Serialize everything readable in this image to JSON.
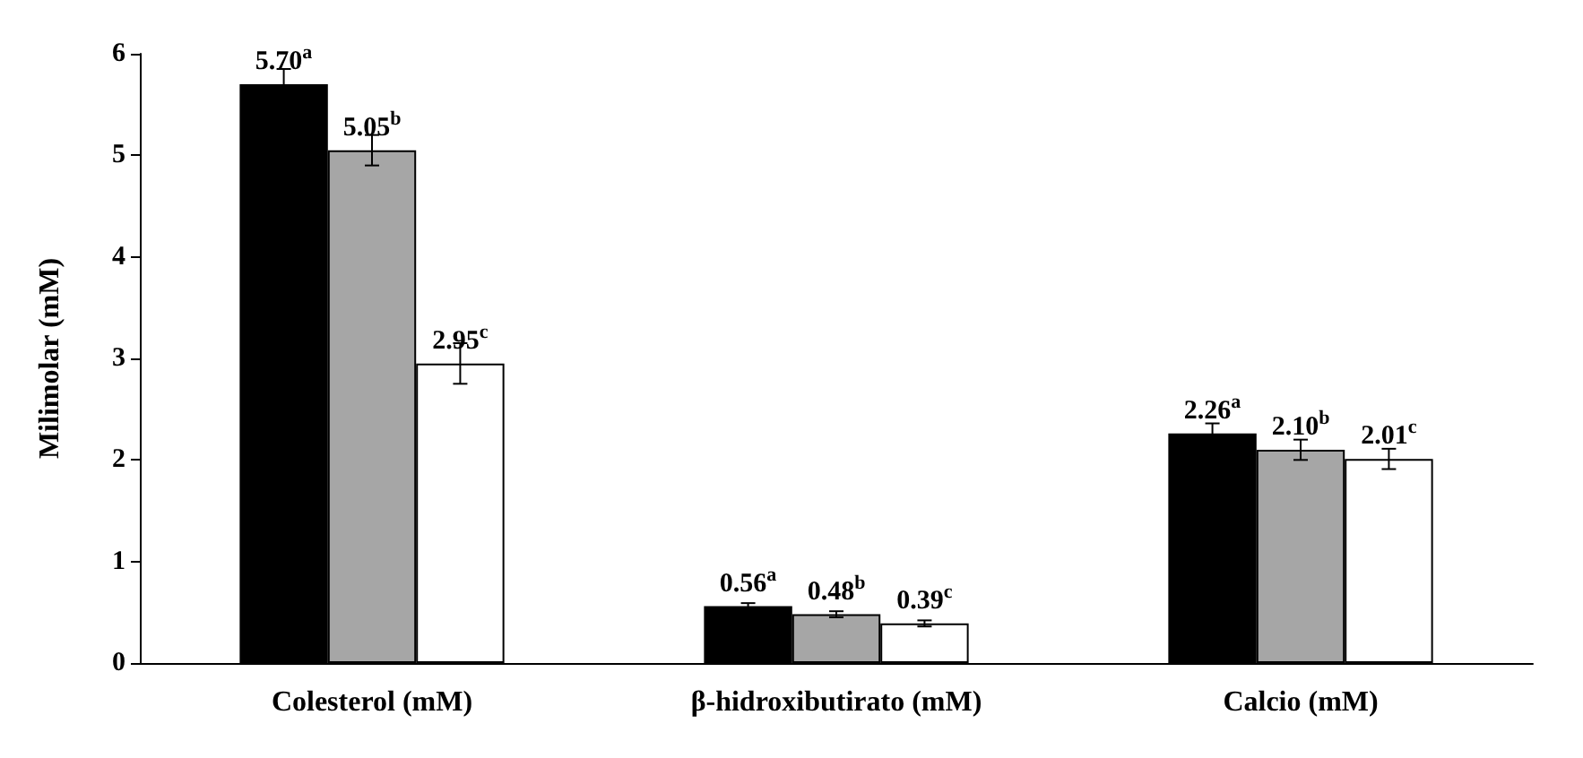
{
  "chart_data": {
    "type": "bar",
    "ylabel": "Milimolar (mM)",
    "categories": [
      "Colesterol (mM)",
      "β-hidroxibutirato (mM)",
      "Calcio (mM)"
    ],
    "series": [
      {
        "color": "#000000",
        "values": [
          5.7,
          0.56,
          2.26
        ],
        "errors": [
          0.15,
          0.03,
          0.1
        ],
        "value_labels": [
          "5.70$^{a}$",
          "0.56$^{a}$",
          "2.26$^{a}$"
        ]
      },
      {
        "color": "#a6a6a6",
        "values": [
          5.05,
          0.48,
          2.1
        ],
        "errors": [
          0.15,
          0.03,
          0.1
        ],
        "value_labels": [
          "5.05$^{b}$",
          "0.48$^{b}$",
          "2.10$^{b}$"
        ]
      },
      {
        "color": "#ffffff",
        "values": [
          2.95,
          0.39,
          2.01
        ],
        "errors": [
          0.2,
          0.03,
          0.1
        ],
        "value_labels": [
          "2.95$^{c}$",
          "0.39$^{c}$",
          "2.01$^{c}$"
        ]
      }
    ],
    "ylim": [
      0,
      6
    ],
    "yticks": [
      0,
      1,
      2,
      3,
      4,
      5,
      6
    ],
    "grid": false
  }
}
